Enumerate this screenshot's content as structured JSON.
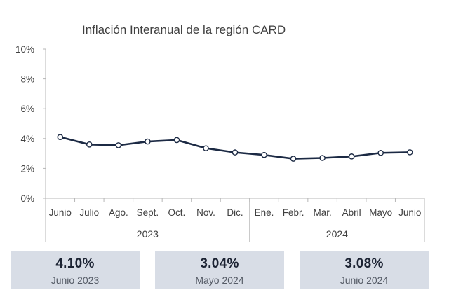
{
  "chart_data": {
    "type": "line",
    "title": "Inflación Interanual de la región CARD",
    "categories": [
      "Junio",
      "Julio",
      "Ago.",
      "Sept.",
      "Oct.",
      "Nov.",
      "Dic.",
      "Ene.",
      "Febr.",
      "Mar.",
      "Abril",
      "Mayo",
      "Junio"
    ],
    "groups": [
      {
        "label": "2023",
        "categories": [
          "Junio",
          "Julio",
          "Ago.",
          "Sept.",
          "Oct.",
          "Nov.",
          "Dic."
        ]
      },
      {
        "label": "2024",
        "categories": [
          "Ene.",
          "Febr.",
          "Mar.",
          "Abril",
          "Mayo",
          "Junio"
        ]
      }
    ],
    "series": [
      {
        "values": [
          4.1,
          3.6,
          3.55,
          3.8,
          3.9,
          3.35,
          3.07,
          2.9,
          2.65,
          2.7,
          2.8,
          3.04,
          3.08
        ],
        "color": "#1c2a44"
      }
    ],
    "yticks": [
      "10%",
      "8%",
      "6%",
      "4%",
      "2%",
      "0%"
    ],
    "ylim": [
      0,
      10
    ],
    "grid": false,
    "legend": "none"
  },
  "kpis": [
    {
      "value": "4.10%",
      "label": "Junio 2023"
    },
    {
      "value": "3.04%",
      "label": "Mayo 2024"
    },
    {
      "value": "3.08%",
      "label": "Junio 2024"
    }
  ]
}
